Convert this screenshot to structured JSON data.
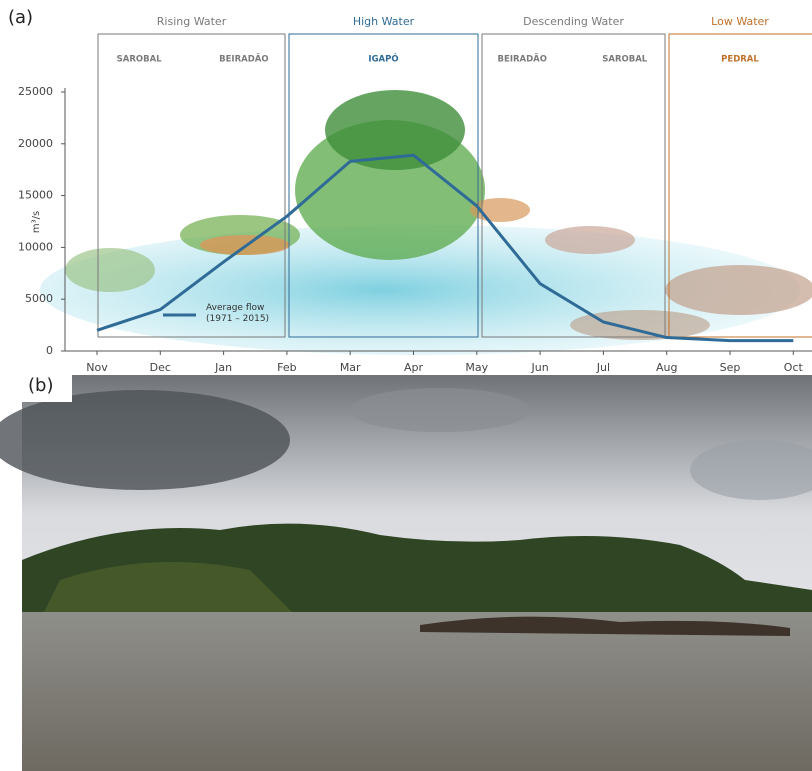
{
  "panel_labels": [
    "(a)",
    "(b)"
  ],
  "chart_data": {
    "type": "line",
    "y_label": "m³/s",
    "categories": [
      "Nov",
      "Dec",
      "Jan",
      "Feb",
      "Mar",
      "Apr",
      "May",
      "Jun",
      "Jul",
      "Aug",
      "Sep",
      "Oct"
    ],
    "series": [
      {
        "name": "Average flow (1971 – 2015)",
        "color": "#2f6b96",
        "values": [
          2000,
          4000,
          8600,
          13000,
          18300,
          18900,
          14000,
          6500,
          2800,
          1300,
          1000,
          1000
        ]
      }
    ],
    "ylim": [
      0,
      25000
    ],
    "yticks": [
      0,
      5000,
      10000,
      15000,
      20000,
      25000
    ],
    "seasons": [
      {
        "name": "Rising Water",
        "color": "#7a7a7a",
        "zones": [
          "SAROBAL",
          "BEIRADÃO"
        ]
      },
      {
        "name": "High Water",
        "color": "#2f6b96",
        "zones": [
          "IGAPÓ"
        ]
      },
      {
        "name": "Descending Water",
        "color": "#7a7a7a",
        "zones": [
          "BEIRADÃO",
          "SAROBAL"
        ]
      },
      {
        "name": "Low Water",
        "color": "#c0722a",
        "zones": [
          "PEDRAL"
        ]
      }
    ]
  }
}
